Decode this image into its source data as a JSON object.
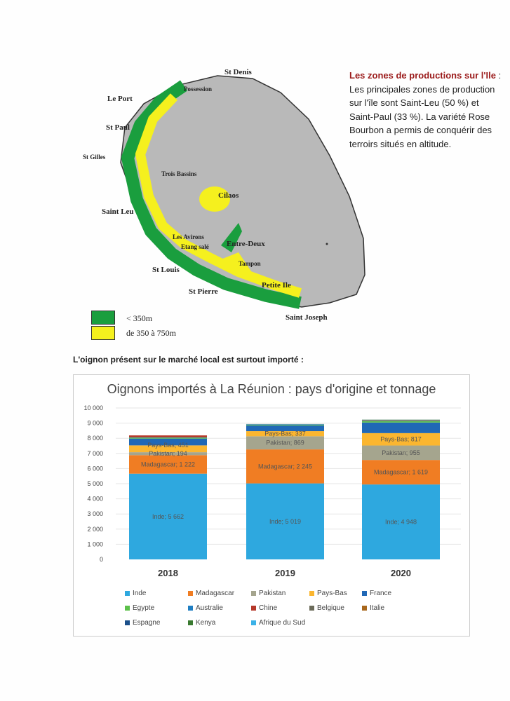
{
  "map": {
    "labels": {
      "st_denis": "St Denis",
      "possession": "Possession",
      "le_port": "Le Port",
      "st_paul": "St Paul",
      "st_gilles": "St Gilles",
      "trois_bassins": "Trois Bassins",
      "cilaos": "Cilaos",
      "saint_leu": "Saint Leu",
      "les_avirons": "Les Avirons",
      "etang_sale": "Etang salé",
      "entre_deux": "Entre-Deux",
      "tampon": "Tampon",
      "st_louis": "St Louis",
      "petite_ile": "Petite Ile",
      "st_pierre": "St Pierre",
      "saint_joseph": "Saint Joseph"
    },
    "legend": [
      {
        "label": "< 350m",
        "color": "#1a9e3e"
      },
      {
        "label": "de 350 à 750m",
        "color": "#f5f01e"
      }
    ]
  },
  "intro": {
    "heading": "Les zones de productions sur l'Ile",
    "body": " : Les principales zones de production sur l'île sont Saint-Leu (50 %) et Saint-Paul (33 %). La variété Rose Bourbon a permis de conquérir des terroirs situés en altitude."
  },
  "subtitle": "L'oignon présent sur le marché local est surtout importé :",
  "chart_data": {
    "type": "bar",
    "stacked": true,
    "title": "Oignons importés à La Réunion : pays d'origine et tonnage",
    "categories": [
      "2018",
      "2019",
      "2020"
    ],
    "ylim": [
      0,
      10000
    ],
    "yticks": [
      "0",
      "1 000",
      "2 000",
      "3 000",
      "4 000",
      "5 000",
      "6 000",
      "7 000",
      "8 000",
      "9 000",
      "10 000"
    ],
    "legend_position": "bottom",
    "series": [
      {
        "name": "Inde",
        "color": "#2ea8df",
        "values": [
          5662,
          5019,
          4948
        ],
        "labels": [
          "Inde; 5 662",
          "Inde; 5 019",
          "Inde; 4 948"
        ]
      },
      {
        "name": "Madagascar",
        "color": "#f07d23",
        "values": [
          1222,
          2245,
          1619
        ],
        "labels": [
          "Madagascar; 1 222",
          "Madagascar; 2 245",
          "Madagascar; 1 619"
        ]
      },
      {
        "name": "Pakistan",
        "color": "#a5a58e",
        "values": [
          194,
          869,
          955
        ],
        "labels": [
          "Pakistan; 194",
          "Pakistan; 869",
          "Pakistan; 955"
        ]
      },
      {
        "name": "Pays-Bas",
        "color": "#fbb630",
        "values": [
          451,
          337,
          817
        ],
        "labels": [
          "Pays-Bas; 451",
          "Pays-Bas; 337",
          "Pays-Bas; 817"
        ]
      },
      {
        "name": "France",
        "color": "#2068b6",
        "values": [
          450,
          380,
          700
        ],
        "labels": []
      },
      {
        "name": "Egypte",
        "color": "#5cc04a",
        "values": [
          60,
          50,
          90
        ],
        "labels": []
      },
      {
        "name": "Australie",
        "color": "#1f7ec2",
        "values": [
          20,
          30,
          20
        ],
        "labels": []
      },
      {
        "name": "Chine",
        "color": "#b5382a",
        "values": [
          130,
          0,
          0
        ],
        "labels": []
      },
      {
        "name": "Belgique",
        "color": "#6b6b5a",
        "values": [
          0,
          10,
          50
        ],
        "labels": []
      },
      {
        "name": "Italie",
        "color": "#a8671c",
        "values": [
          0,
          0,
          10
        ],
        "labels": []
      },
      {
        "name": "Espagne",
        "color": "#1b4f8a",
        "values": [
          0,
          0,
          10
        ],
        "labels": []
      },
      {
        "name": "Kenya",
        "color": "#3a7a30",
        "values": [
          0,
          0,
          10
        ],
        "labels": []
      },
      {
        "name": "Afrique du Sud",
        "color": "#3bb2e8",
        "values": [
          0,
          0,
          0
        ],
        "labels": []
      }
    ]
  }
}
